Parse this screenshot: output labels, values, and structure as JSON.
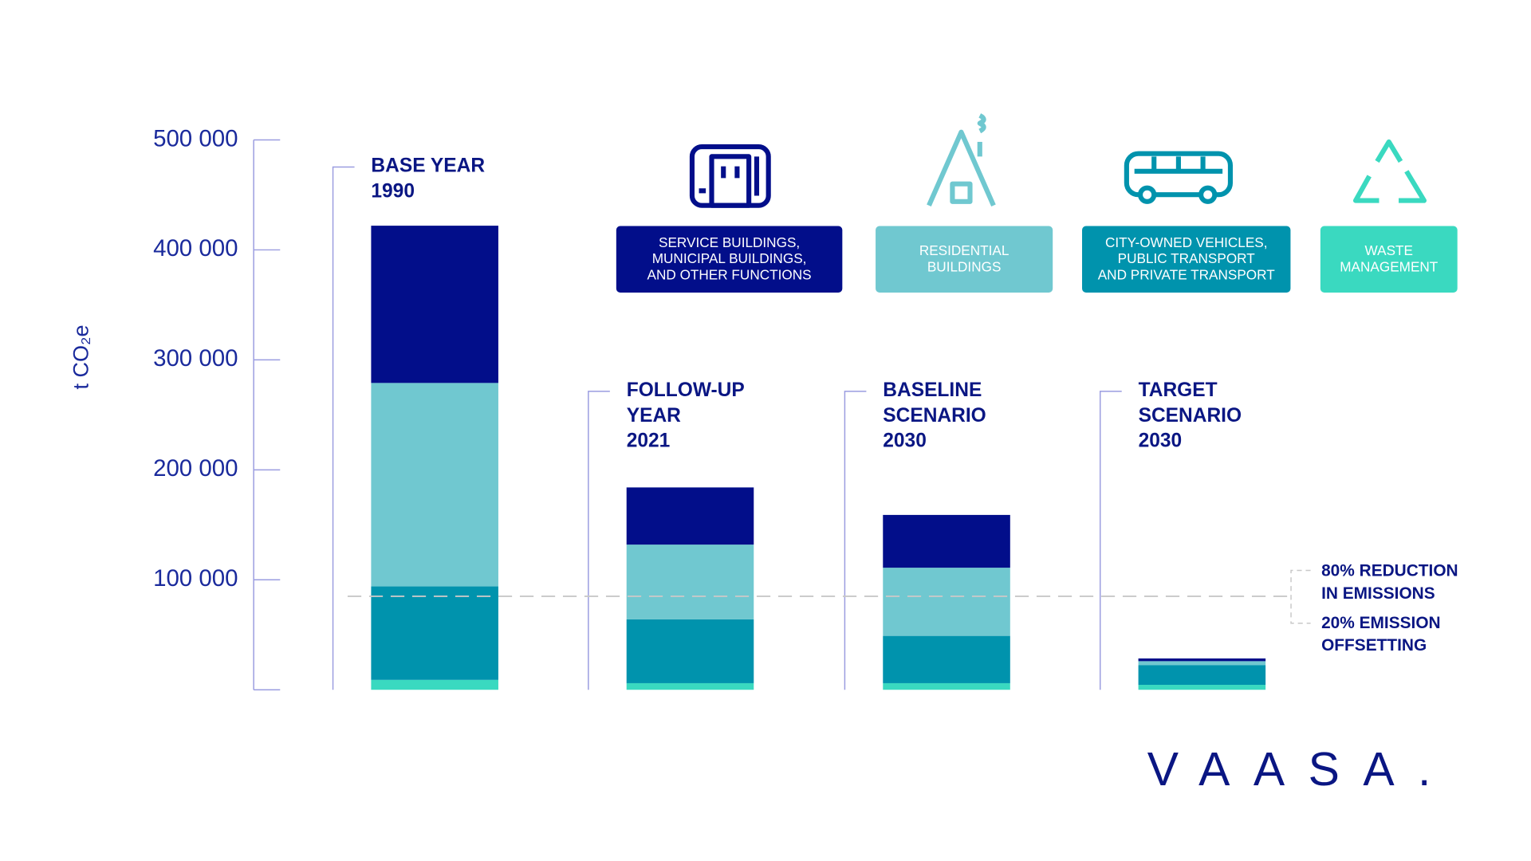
{
  "chart_data": {
    "type": "stacked_bar",
    "y_label": "t CO₂e",
    "categories": [
      "BASE YEAR\n1990",
      "FOLLOW-UP\nYEAR\n2021",
      "BASELINE\nSCENARIO\n2030",
      "TARGET\nSCENARIO\n2030"
    ],
    "series": [
      {
        "name": "WASTE\nMANAGEMENT",
        "color": "#3ad9c0",
        "values": [
          9000,
          6000,
          6000,
          4500
        ]
      },
      {
        "name": "CITY-OWNED VEHICLES,\nPUBLIC TRANSPORT\nAND PRIVATE TRANSPORT",
        "color": "#0093ad",
        "values": [
          85000,
          58000,
          43000,
          18000
        ]
      },
      {
        "name": "RESIDENTIAL\nBUILDINGS",
        "color": "#70c8d0",
        "values": [
          185000,
          68000,
          62000,
          3500
        ]
      },
      {
        "name": "SERVICE BUILDINGS,\nMUNICIPAL BUILDINGS,\nAND OTHER FUNCTIONS",
        "color": "#020e8a",
        "values": [
          143000,
          52000,
          48000,
          2500
        ]
      }
    ],
    "ylim": [
      0,
      500000
    ],
    "yticks": [
      {
        "value": 100000,
        "label": "100 000"
      },
      {
        "value": 200000,
        "label": "200 000"
      },
      {
        "value": 300000,
        "label": "300 000"
      },
      {
        "value": 400000,
        "label": "400 000"
      },
      {
        "value": 500000,
        "label": "500 000"
      }
    ],
    "reference_line": 85000,
    "annotations": [
      "80% REDUCTION\nIN EMISSIONS",
      "20% EMISSION\nOFFSETTING"
    ],
    "logo": "VAASA."
  }
}
